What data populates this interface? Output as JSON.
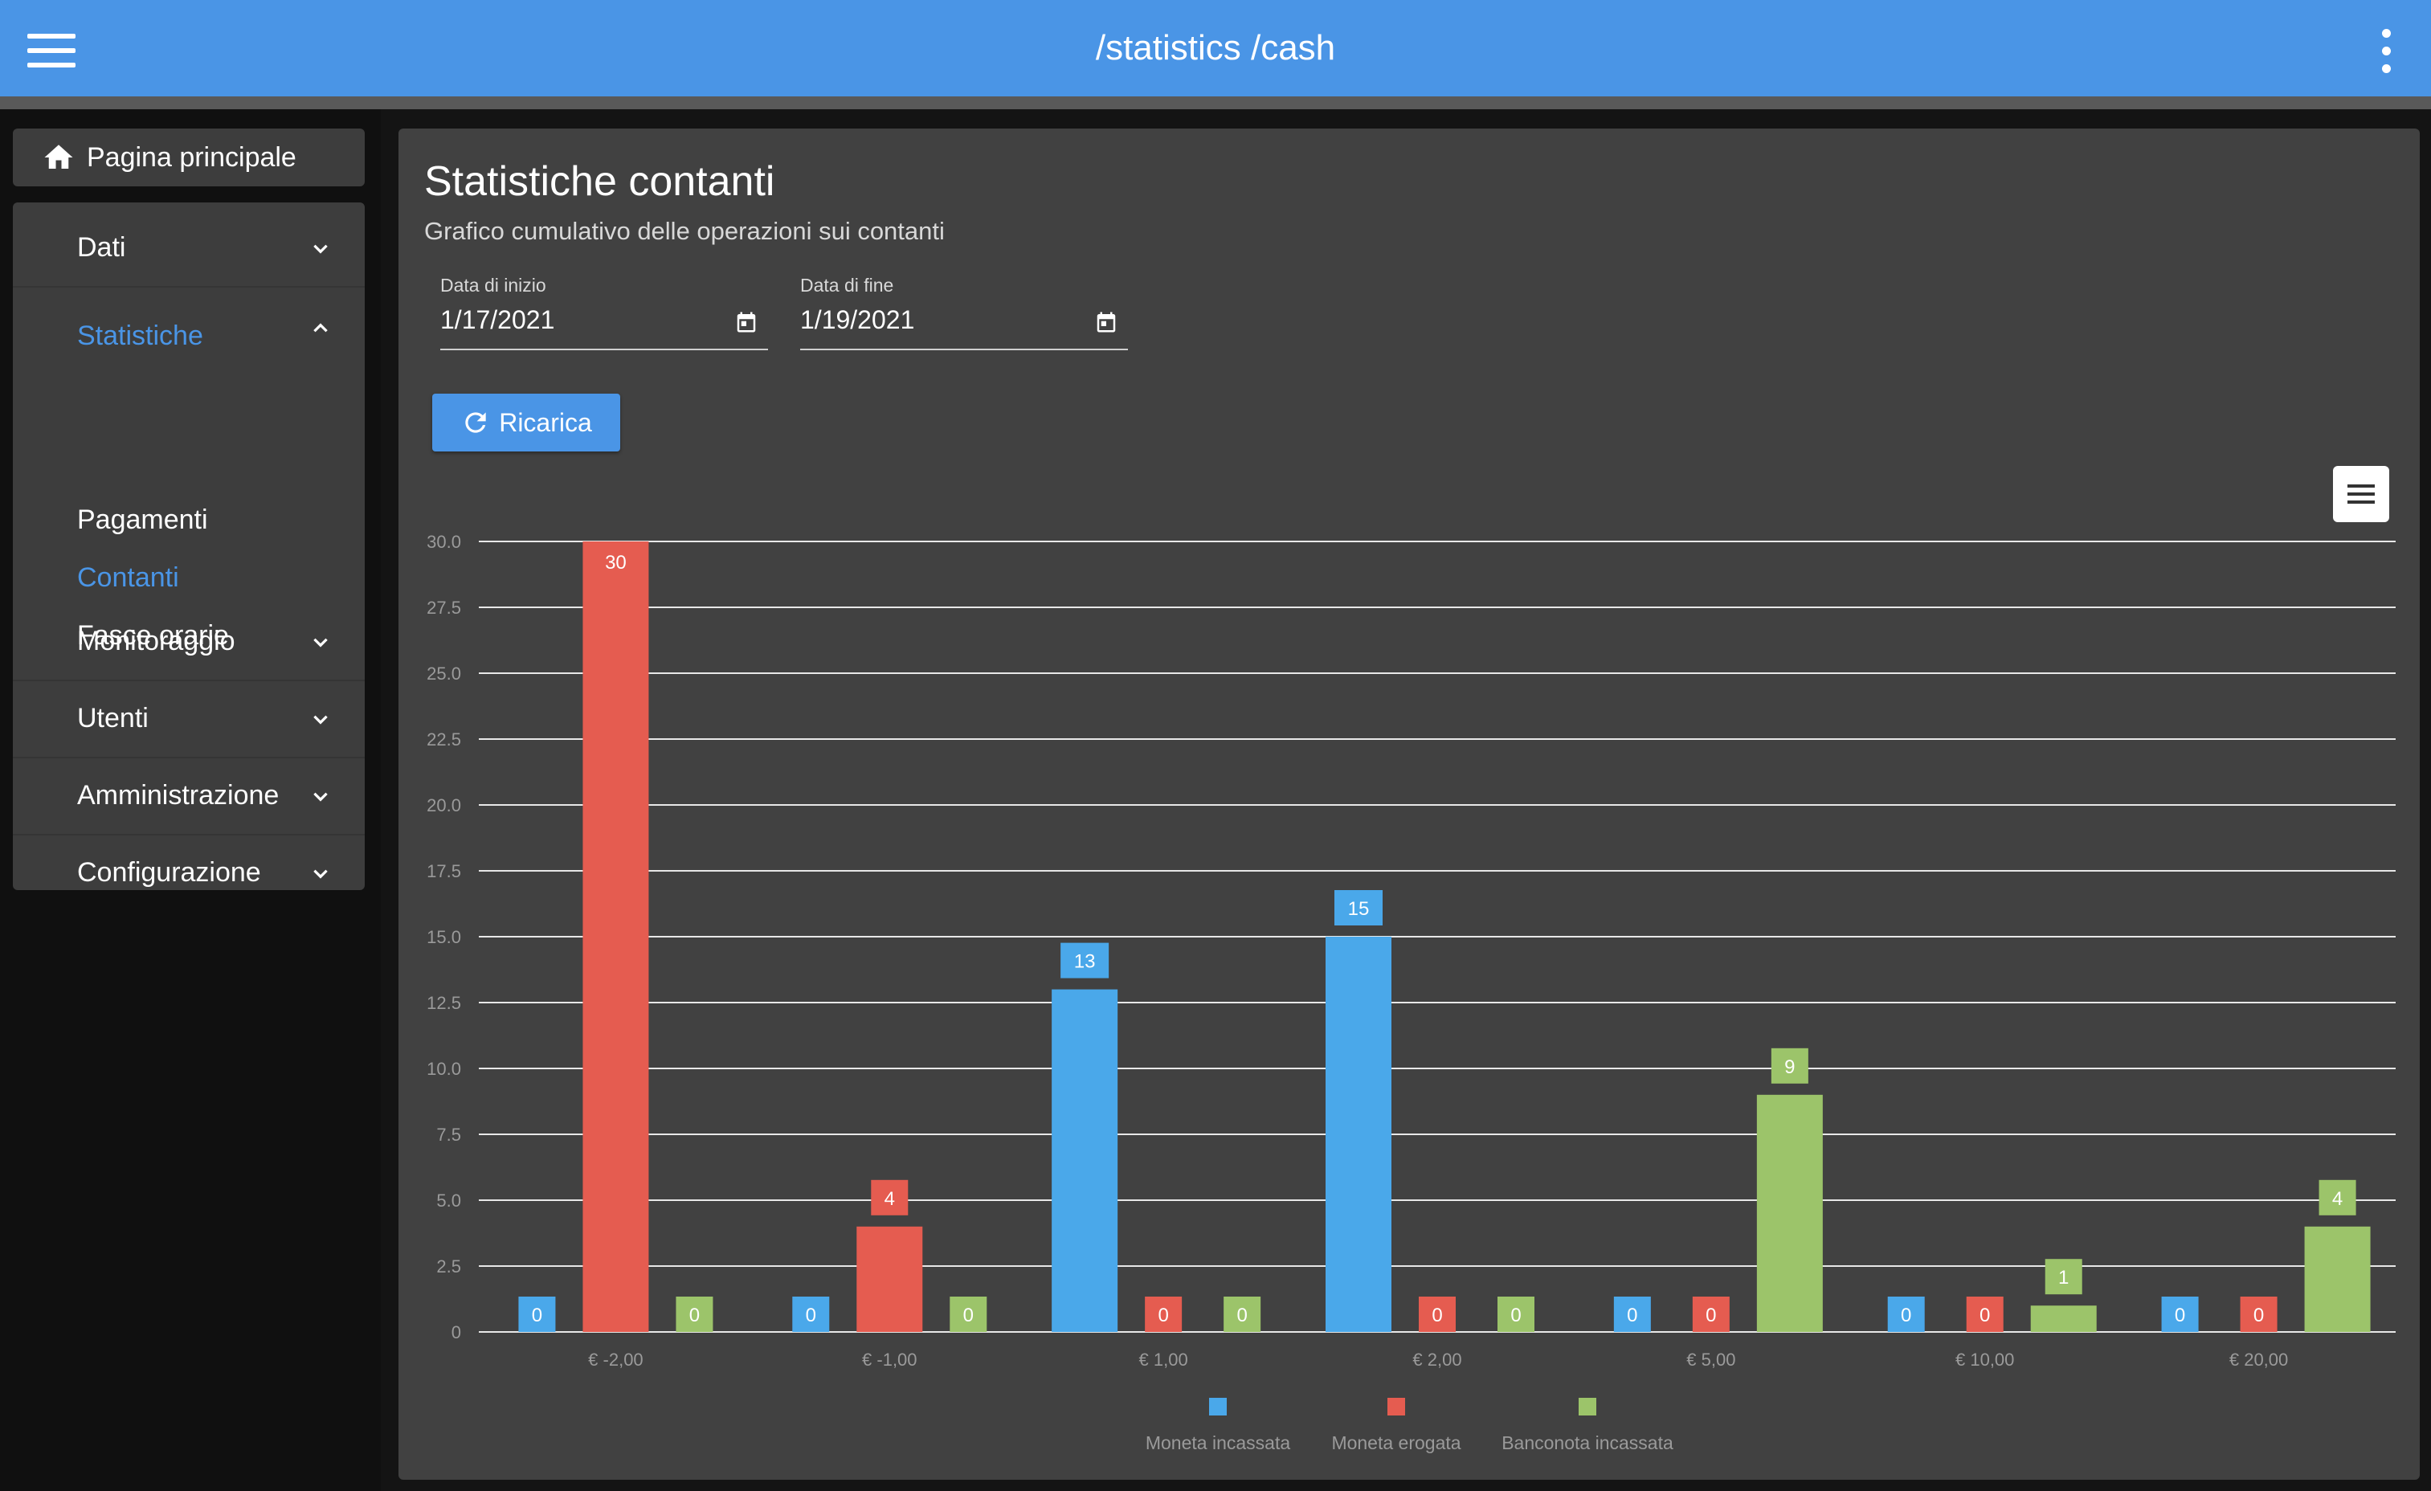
{
  "appbar": {
    "title": "/statistics /cash",
    "icons": {
      "menu": "hamburger-menu-icon",
      "more": "more-vert-icon"
    }
  },
  "sidebar": {
    "home_label": "Pagina principale",
    "items": [
      {
        "label": "Dati",
        "expanded": false
      },
      {
        "label": "Statistiche",
        "expanded": true,
        "active": true,
        "children": [
          {
            "label": "Pagamenti",
            "active": false
          },
          {
            "label": "Contanti",
            "active": true
          },
          {
            "label": "Fasce orarie",
            "active": false
          }
        ]
      },
      {
        "label": "Monitoraggio",
        "expanded": false
      },
      {
        "label": "Utenti",
        "expanded": false
      },
      {
        "label": "Amministrazione",
        "expanded": false
      },
      {
        "label": "Configurazione",
        "expanded": false
      }
    ]
  },
  "main": {
    "title": "Statistiche contanti",
    "subtitle": "Grafico cumulativo delle operazioni sui contanti",
    "start_date": {
      "label": "Data di inizio",
      "value": "1/17/2021"
    },
    "end_date": {
      "label": "Data di fine",
      "value": "1/19/2021"
    },
    "reload_label": "Ricarica"
  },
  "colors": {
    "accent": "#4a95e6",
    "series_blue": "#4aa8ea",
    "series_red": "#e55c50",
    "series_green": "#9cc46a"
  },
  "chart_data": {
    "type": "bar",
    "categories": [
      "€ -2,00",
      "€ -1,00",
      "€ 1,00",
      "€ 2,00",
      "€ 5,00",
      "€ 10,00",
      "€ 20,00"
    ],
    "series": [
      {
        "name": "Moneta incassata",
        "color": "#4aa8ea",
        "values": [
          0,
          0,
          13,
          15,
          0,
          0,
          0
        ]
      },
      {
        "name": "Moneta erogata",
        "color": "#e55c50",
        "values": [
          30,
          4,
          0,
          0,
          0,
          0,
          0
        ]
      },
      {
        "name": "Banconota incassata",
        "color": "#9cc46a",
        "values": [
          0,
          0,
          0,
          0,
          9,
          1,
          4
        ]
      }
    ],
    "yticks": [
      "0",
      "2.5",
      "5.0",
      "7.5",
      "10.0",
      "12.5",
      "15.0",
      "17.5",
      "20.0",
      "22.5",
      "25.0",
      "27.5",
      "30.0"
    ],
    "ylim": [
      0,
      30
    ],
    "grid": true,
    "legend": "bottom",
    "data_labels": true
  }
}
